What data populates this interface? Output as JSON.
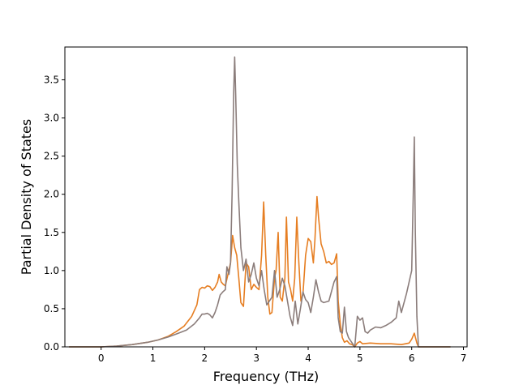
{
  "chart_data": {
    "type": "line",
    "title": "",
    "xlabel": "Frequency (THz)",
    "ylabel": "Partial Density of States",
    "xlim": [
      -0.7,
      7.07
    ],
    "ylim": [
      0,
      3.93
    ],
    "grid": false,
    "xticks": [
      0,
      1,
      2,
      3,
      4,
      5,
      6,
      7
    ],
    "yticks": [
      0.0,
      0.5,
      1.0,
      1.5,
      2.0,
      2.5,
      3.0,
      3.5
    ],
    "ytick_labels": [
      "0.0",
      "0.5",
      "1.0",
      "1.5",
      "2.0",
      "2.5",
      "3.0",
      "3.5"
    ],
    "series": [
      {
        "color": "#e67e22",
        "points": [
          [
            -0.62,
            0.0
          ],
          [
            0.0,
            0.0
          ],
          [
            0.3,
            0.01
          ],
          [
            0.6,
            0.03
          ],
          [
            0.9,
            0.06
          ],
          [
            1.1,
            0.09
          ],
          [
            1.3,
            0.14
          ],
          [
            1.45,
            0.2
          ],
          [
            1.6,
            0.27
          ],
          [
            1.75,
            0.4
          ],
          [
            1.85,
            0.55
          ],
          [
            1.9,
            0.75
          ],
          [
            1.95,
            0.78
          ],
          [
            2.0,
            0.77
          ],
          [
            2.05,
            0.8
          ],
          [
            2.1,
            0.79
          ],
          [
            2.15,
            0.74
          ],
          [
            2.2,
            0.78
          ],
          [
            2.25,
            0.85
          ],
          [
            2.28,
            0.95
          ],
          [
            2.32,
            0.85
          ],
          [
            2.36,
            0.82
          ],
          [
            2.4,
            0.8
          ],
          [
            2.45,
            0.95
          ],
          [
            2.5,
            1.1
          ],
          [
            2.54,
            1.46
          ],
          [
            2.58,
            1.3
          ],
          [
            2.62,
            1.2
          ],
          [
            2.66,
            0.9
          ],
          [
            2.7,
            0.58
          ],
          [
            2.75,
            0.53
          ],
          [
            2.8,
            1.1
          ],
          [
            2.85,
            1.05
          ],
          [
            2.9,
            0.75
          ],
          [
            2.95,
            0.82
          ],
          [
            3.0,
            0.78
          ],
          [
            3.05,
            0.75
          ],
          [
            3.1,
            1.2
          ],
          [
            3.14,
            1.9
          ],
          [
            3.18,
            1.2
          ],
          [
            3.22,
            0.65
          ],
          [
            3.26,
            0.43
          ],
          [
            3.3,
            0.45
          ],
          [
            3.35,
            0.9
          ],
          [
            3.38,
            1.0
          ],
          [
            3.42,
            1.5
          ],
          [
            3.46,
            0.65
          ],
          [
            3.5,
            0.6
          ],
          [
            3.55,
            0.9
          ],
          [
            3.58,
            1.7
          ],
          [
            3.62,
            0.85
          ],
          [
            3.66,
            0.75
          ],
          [
            3.7,
            0.6
          ],
          [
            3.74,
            0.9
          ],
          [
            3.78,
            1.7
          ],
          [
            3.82,
            1.1
          ],
          [
            3.86,
            0.6
          ],
          [
            3.9,
            0.7
          ],
          [
            3.95,
            1.2
          ],
          [
            4.0,
            1.42
          ],
          [
            4.05,
            1.38
          ],
          [
            4.1,
            1.1
          ],
          [
            4.13,
            1.4
          ],
          [
            4.17,
            1.97
          ],
          [
            4.2,
            1.7
          ],
          [
            4.25,
            1.35
          ],
          [
            4.3,
            1.25
          ],
          [
            4.35,
            1.1
          ],
          [
            4.4,
            1.12
          ],
          [
            4.45,
            1.08
          ],
          [
            4.5,
            1.1
          ],
          [
            4.55,
            1.22
          ],
          [
            4.58,
            0.6
          ],
          [
            4.62,
            0.3
          ],
          [
            4.66,
            0.12
          ],
          [
            4.7,
            0.06
          ],
          [
            4.75,
            0.08
          ],
          [
            4.8,
            0.04
          ],
          [
            4.85,
            0.03
          ],
          [
            4.9,
            0.0
          ],
          [
            4.95,
            0.05
          ],
          [
            5.0,
            0.07
          ],
          [
            5.05,
            0.04
          ],
          [
            5.2,
            0.05
          ],
          [
            5.4,
            0.04
          ],
          [
            5.6,
            0.04
          ],
          [
            5.8,
            0.03
          ],
          [
            5.95,
            0.05
          ],
          [
            6.0,
            0.1
          ],
          [
            6.05,
            0.18
          ],
          [
            6.1,
            0.05
          ],
          [
            6.13,
            0.0
          ],
          [
            6.75,
            0.0
          ]
        ]
      },
      {
        "color": "#8b7d7b",
        "points": [
          [
            -0.62,
            0.0
          ],
          [
            0.0,
            0.0
          ],
          [
            0.3,
            0.01
          ],
          [
            0.6,
            0.03
          ],
          [
            0.9,
            0.06
          ],
          [
            1.1,
            0.09
          ],
          [
            1.3,
            0.13
          ],
          [
            1.5,
            0.18
          ],
          [
            1.65,
            0.22
          ],
          [
            1.8,
            0.3
          ],
          [
            1.9,
            0.38
          ],
          [
            1.95,
            0.43
          ],
          [
            2.0,
            0.43
          ],
          [
            2.05,
            0.44
          ],
          [
            2.1,
            0.42
          ],
          [
            2.15,
            0.38
          ],
          [
            2.2,
            0.45
          ],
          [
            2.25,
            0.55
          ],
          [
            2.3,
            0.68
          ],
          [
            2.35,
            0.72
          ],
          [
            2.4,
            0.75
          ],
          [
            2.43,
            1.05
          ],
          [
            2.47,
            0.95
          ],
          [
            2.5,
            1.1
          ],
          [
            2.53,
            2.0
          ],
          [
            2.56,
            3.3
          ],
          [
            2.58,
            3.8
          ],
          [
            2.6,
            3.3
          ],
          [
            2.63,
            2.4
          ],
          [
            2.66,
            1.9
          ],
          [
            2.7,
            1.3
          ],
          [
            2.75,
            1.0
          ],
          [
            2.8,
            1.15
          ],
          [
            2.85,
            0.85
          ],
          [
            2.9,
            0.95
          ],
          [
            2.95,
            1.1
          ],
          [
            3.0,
            0.9
          ],
          [
            3.05,
            0.8
          ],
          [
            3.1,
            1.0
          ],
          [
            3.15,
            0.75
          ],
          [
            3.2,
            0.55
          ],
          [
            3.25,
            0.6
          ],
          [
            3.3,
            0.65
          ],
          [
            3.35,
            1.0
          ],
          [
            3.4,
            0.65
          ],
          [
            3.45,
            0.75
          ],
          [
            3.5,
            0.9
          ],
          [
            3.55,
            0.8
          ],
          [
            3.6,
            0.6
          ],
          [
            3.65,
            0.4
          ],
          [
            3.7,
            0.28
          ],
          [
            3.75,
            0.6
          ],
          [
            3.8,
            0.3
          ],
          [
            3.85,
            0.5
          ],
          [
            3.9,
            0.72
          ],
          [
            3.95,
            0.62
          ],
          [
            4.0,
            0.58
          ],
          [
            4.05,
            0.45
          ],
          [
            4.1,
            0.65
          ],
          [
            4.15,
            0.88
          ],
          [
            4.2,
            0.72
          ],
          [
            4.25,
            0.6
          ],
          [
            4.3,
            0.58
          ],
          [
            4.4,
            0.6
          ],
          [
            4.5,
            0.85
          ],
          [
            4.55,
            0.92
          ],
          [
            4.58,
            0.38
          ],
          [
            4.62,
            0.2
          ],
          [
            4.66,
            0.18
          ],
          [
            4.7,
            0.52
          ],
          [
            4.74,
            0.2
          ],
          [
            4.78,
            0.12
          ],
          [
            4.85,
            0.05
          ],
          [
            4.9,
            0.0
          ],
          [
            4.95,
            0.4
          ],
          [
            5.0,
            0.35
          ],
          [
            5.05,
            0.38
          ],
          [
            5.1,
            0.2
          ],
          [
            5.15,
            0.18
          ],
          [
            5.2,
            0.22
          ],
          [
            5.3,
            0.26
          ],
          [
            5.4,
            0.25
          ],
          [
            5.5,
            0.28
          ],
          [
            5.6,
            0.32
          ],
          [
            5.7,
            0.38
          ],
          [
            5.75,
            0.6
          ],
          [
            5.8,
            0.45
          ],
          [
            5.9,
            0.7
          ],
          [
            5.95,
            0.85
          ],
          [
            6.0,
            1.0
          ],
          [
            6.03,
            2.0
          ],
          [
            6.05,
            2.75
          ],
          [
            6.07,
            1.5
          ],
          [
            6.1,
            0.4
          ],
          [
            6.13,
            0.0
          ],
          [
            6.75,
            0.0
          ]
        ]
      }
    ]
  }
}
